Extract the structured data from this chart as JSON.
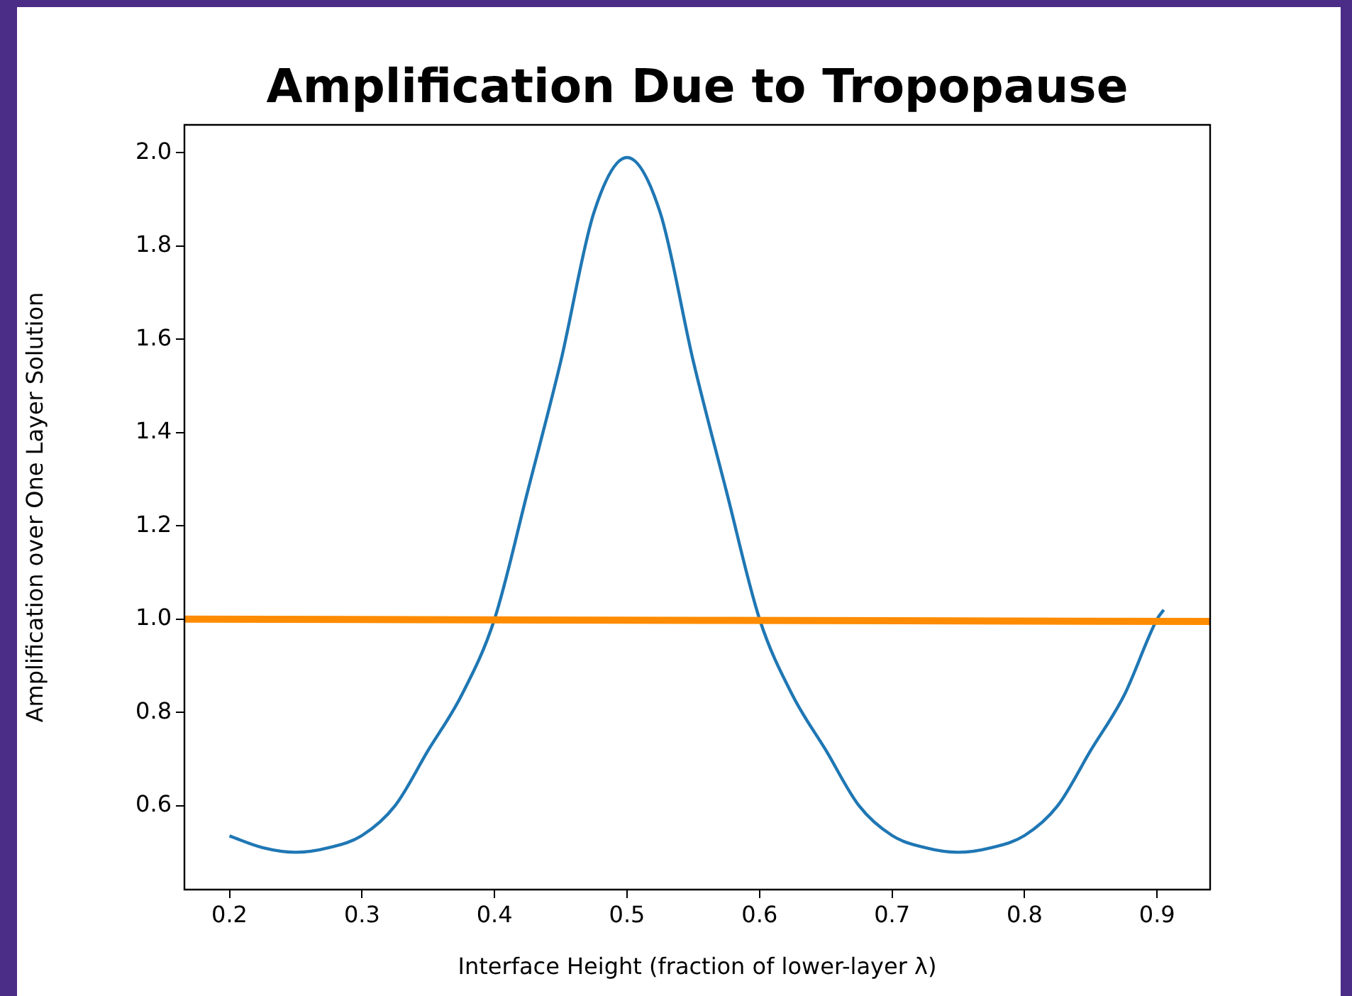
{
  "chart_data": {
    "type": "line",
    "title": "Amplification Due to Tropopause",
    "xlabel": "Interface Height (fraction of lower-layer λ)",
    "ylabel": "Amplification over One Layer Solution",
    "xlim": [
      0.166,
      0.94
    ],
    "ylim": [
      0.42,
      2.06
    ],
    "xticks": [
      0.2,
      0.3,
      0.4,
      0.5,
      0.6,
      0.7,
      0.8,
      0.9
    ],
    "yticks": [
      0.6,
      0.8,
      {
        "value": 1,
        "label": "1.0"
      },
      1.2,
      1.4,
      1.6,
      1.8,
      {
        "value": 2,
        "label": "2.0"
      }
    ],
    "grid": false,
    "legend": false,
    "marker": "none",
    "line_style": "solid",
    "series": [
      {
        "color": "#1f77b4",
        "x": [
          0.2,
          0.225,
          0.25,
          0.275,
          0.3,
          0.325,
          0.35,
          0.375,
          0.4,
          0.425,
          0.45,
          0.475,
          0.5,
          0.525,
          0.55,
          0.575,
          0.6,
          0.625,
          0.65,
          0.675,
          0.7,
          0.725,
          0.75,
          0.775,
          0.8,
          0.825,
          0.85,
          0.875,
          0.9,
          0.905
        ],
        "values": [
          0.535,
          0.51,
          0.5,
          0.51,
          0.536,
          0.6,
          0.719,
          0.836,
          1.0,
          1.274,
          1.553,
          1.872,
          1.99,
          1.872,
          1.553,
          1.274,
          1.0,
          0.836,
          0.719,
          0.6,
          0.536,
          0.51,
          0.5,
          0.51,
          0.536,
          0.6,
          0.719,
          0.836,
          1.0,
          1.02
        ]
      },
      {
        "color": "#ff8c00",
        "x": [
          0.166,
          0.94
        ],
        "values": [
          1.0,
          0.995
        ]
      }
    ]
  }
}
